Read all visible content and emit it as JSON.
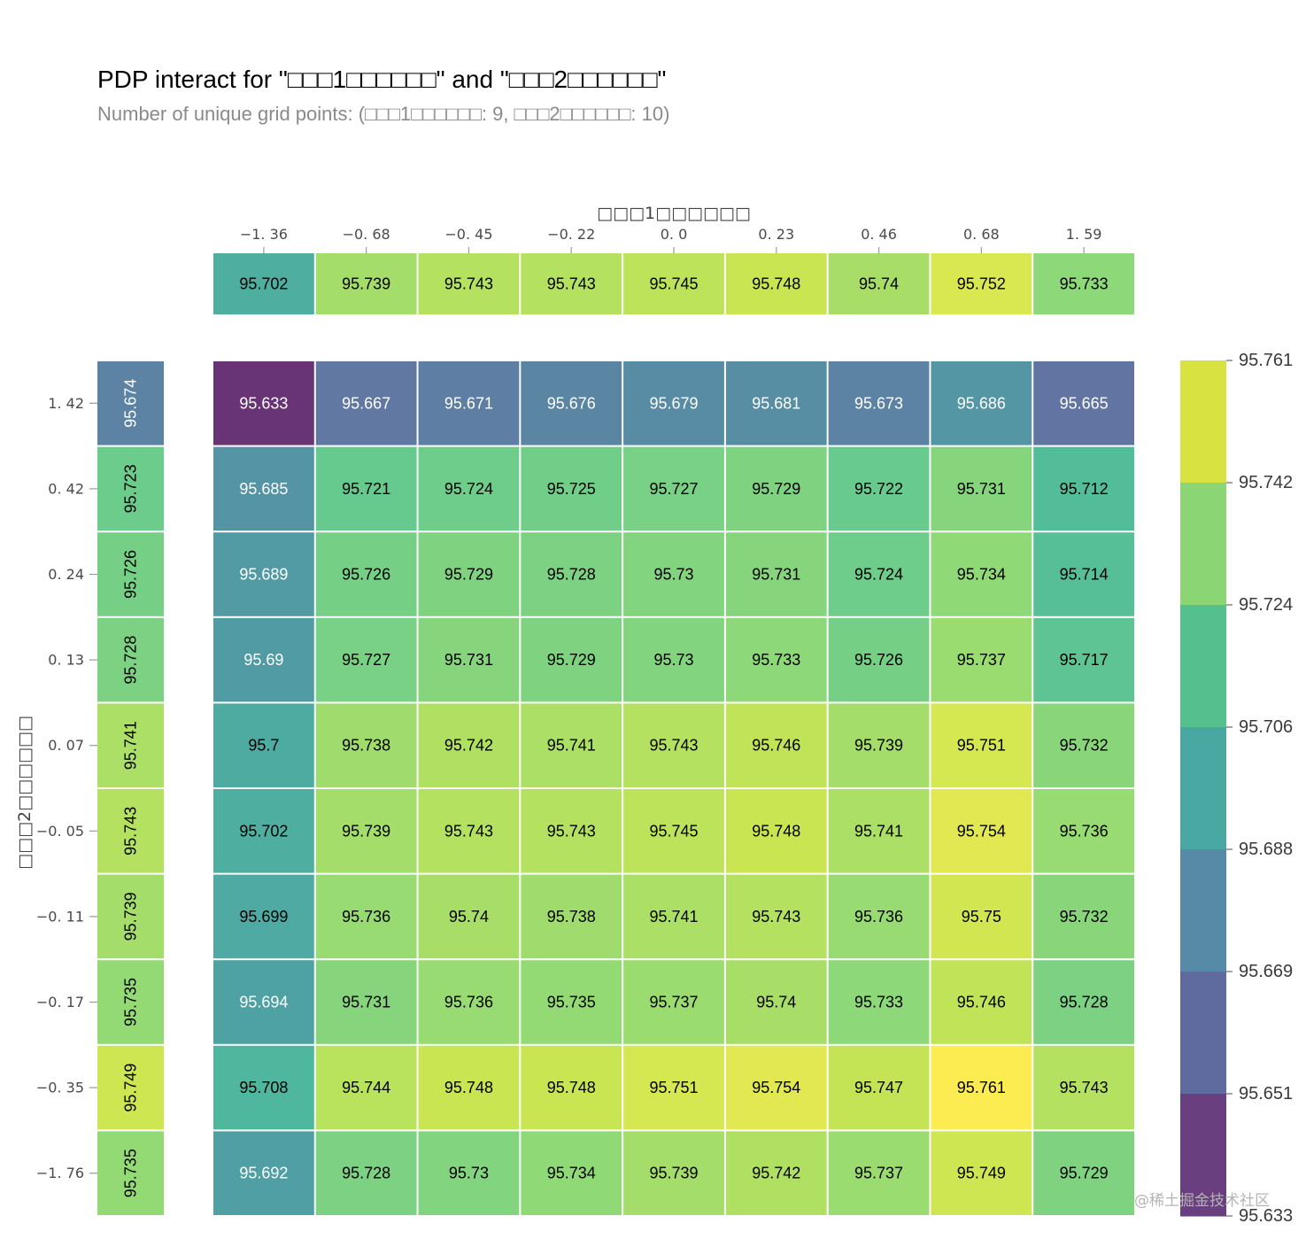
{
  "watermark": "@稀土掘金技术社区",
  "chart_data": {
    "type": "heatmap",
    "title": "PDP interact for \"□□□1□□□□□□\" and \"□□□2□□□□□□\"",
    "subtitle": "Number of unique grid points: (□□□1□□□□□□: 9, □□□2□□□□□□: 10)",
    "xlabel": "□□□1□□□□□□",
    "ylabel": "□□□2□□□□□□",
    "x": [
      -1.36,
      -0.68,
      -0.45,
      -0.22,
      0.0,
      0.23,
      0.46,
      0.68,
      1.59
    ],
    "x_tick_labels": [
      "−1. 36",
      "−0. 68",
      "−0. 45",
      "−0. 22",
      "0. 0",
      "0. 23",
      "0. 46",
      "0. 68",
      "1. 59"
    ],
    "y": [
      1.42,
      0.42,
      0.24,
      0.13,
      0.07,
      -0.05,
      -0.11,
      -0.17,
      -0.35,
      -1.76
    ],
    "y_tick_labels": [
      "1. 42",
      "0. 42",
      "0. 24",
      "0. 13",
      "0. 07",
      "−0. 05",
      "−0. 11",
      "−0. 17",
      "−0. 35",
      "−1. 76"
    ],
    "x_marginal": [
      95.702,
      95.739,
      95.743,
      95.743,
      95.745,
      95.748,
      95.74,
      95.752,
      95.733
    ],
    "y_marginal": [
      95.674,
      95.723,
      95.726,
      95.728,
      95.741,
      95.743,
      95.739,
      95.735,
      95.749,
      95.735
    ],
    "values": [
      [
        95.633,
        95.667,
        95.671,
        95.676,
        95.679,
        95.681,
        95.673,
        95.686,
        95.665
      ],
      [
        95.685,
        95.721,
        95.724,
        95.725,
        95.727,
        95.729,
        95.722,
        95.731,
        95.712
      ],
      [
        95.689,
        95.726,
        95.729,
        95.728,
        95.73,
        95.731,
        95.724,
        95.734,
        95.714
      ],
      [
        95.69,
        95.727,
        95.731,
        95.729,
        95.73,
        95.733,
        95.726,
        95.737,
        95.717
      ],
      [
        95.7,
        95.738,
        95.742,
        95.741,
        95.743,
        95.746,
        95.739,
        95.751,
        95.732
      ],
      [
        95.702,
        95.739,
        95.743,
        95.743,
        95.745,
        95.748,
        95.741,
        95.754,
        95.736
      ],
      [
        95.699,
        95.736,
        95.74,
        95.738,
        95.741,
        95.743,
        95.736,
        95.75,
        95.732
      ],
      [
        95.694,
        95.731,
        95.736,
        95.735,
        95.737,
        95.74,
        95.733,
        95.746,
        95.728
      ],
      [
        95.708,
        95.744,
        95.748,
        95.748,
        95.751,
        95.754,
        95.747,
        95.761,
        95.743
      ],
      [
        95.692,
        95.728,
        95.73,
        95.734,
        95.739,
        95.742,
        95.737,
        95.749,
        95.729
      ]
    ],
    "colormap": [
      "#440154",
      "#482475",
      "#414487",
      "#355f8d",
      "#2a788e",
      "#21918c",
      "#22a884",
      "#44bf70",
      "#7ad151",
      "#bddf26",
      "#fde725"
    ],
    "colorbar": {
      "range": [
        95.633,
        95.761
      ],
      "ticks": [
        95.761,
        95.742,
        95.724,
        95.706,
        95.688,
        95.669,
        95.651,
        95.633
      ],
      "band_colors": [
        "#d8e240",
        "#8bd574",
        "#53c08d",
        "#49a8a2",
        "#568aa6",
        "#5f6a9f",
        "#6a3f80"
      ]
    }
  }
}
